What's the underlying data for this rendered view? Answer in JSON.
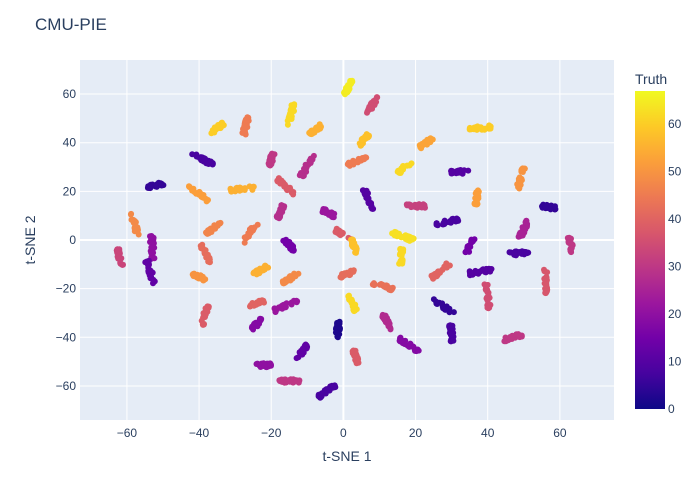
{
  "chart_data": {
    "type": "scatter",
    "title": "CMU-PIE",
    "xlabel": "t-SNE 1",
    "ylabel": "t-SNE 2",
    "xlim": [
      -73,
      75
    ],
    "ylim": [
      -74,
      74
    ],
    "x_ticks": [
      -60,
      -40,
      -20,
      0,
      20,
      40,
      60
    ],
    "y_ticks": [
      -60,
      -40,
      -20,
      0,
      20,
      40,
      60
    ],
    "tick_labels_x": [
      "−60",
      "−40",
      "−20",
      "0",
      "20",
      "40",
      "60"
    ],
    "tick_labels_y": [
      "−60",
      "−40",
      "−20",
      "0",
      "20",
      "40",
      "60"
    ],
    "grid": true,
    "plot_bgcolor": "#e5ecf6",
    "colorbar": {
      "title": "Truth",
      "range": [
        0,
        67
      ],
      "ticks": [
        0,
        10,
        20,
        30,
        40,
        50,
        60
      ],
      "tick_labels": [
        "0",
        "10",
        "20",
        "30",
        "40",
        "50",
        "60"
      ],
      "colorscale": [
        "#0d0887",
        "#46039f",
        "#7201a8",
        "#9c179e",
        "#bd3786",
        "#d8576b",
        "#ed7953",
        "#fb9f3a",
        "#fdca26",
        "#f0f921"
      ]
    },
    "clusters": [
      {
        "x": 1.5,
        "y": 63,
        "truth": 65
      },
      {
        "x": 8,
        "y": 55.5,
        "truth": 35
      },
      {
        "x": -14.5,
        "y": 51.5,
        "truth": 62
      },
      {
        "x": -35,
        "y": 46,
        "truth": 60
      },
      {
        "x": -27,
        "y": 47,
        "truth": 45
      },
      {
        "x": -8,
        "y": 45,
        "truth": 55
      },
      {
        "x": 38,
        "y": 46,
        "truth": 60
      },
      {
        "x": 5.5,
        "y": 41,
        "truth": 58
      },
      {
        "x": 23,
        "y": 40,
        "truth": 53
      },
      {
        "x": -39,
        "y": 33,
        "truth": 8
      },
      {
        "x": -20,
        "y": 33,
        "truth": 30
      },
      {
        "x": -10,
        "y": 30.5,
        "truth": 28
      },
      {
        "x": 4,
        "y": 32.5,
        "truth": 45
      },
      {
        "x": 17,
        "y": 30,
        "truth": 62
      },
      {
        "x": 32.5,
        "y": 28,
        "truth": 10
      },
      {
        "x": 49,
        "y": 25,
        "truth": 50
      },
      {
        "x": -52,
        "y": 22.5,
        "truth": 5
      },
      {
        "x": -16,
        "y": 22,
        "truth": 38
      },
      {
        "x": -28,
        "y": 21,
        "truth": 55
      },
      {
        "x": -40,
        "y": 19,
        "truth": 52
      },
      {
        "x": 7,
        "y": 16.5,
        "truth": 10
      },
      {
        "x": 20,
        "y": 14,
        "truth": 32
      },
      {
        "x": 37,
        "y": 17.5,
        "truth": 52
      },
      {
        "x": 57,
        "y": 13.5,
        "truth": 5
      },
      {
        "x": -17.5,
        "y": 11.5,
        "truth": 28
      },
      {
        "x": -4,
        "y": 11,
        "truth": 22
      },
      {
        "x": 29,
        "y": 7.5,
        "truth": 8
      },
      {
        "x": -58,
        "y": 7,
        "truth": 48
      },
      {
        "x": -36,
        "y": 5,
        "truth": 47
      },
      {
        "x": -26,
        "y": 3,
        "truth": 45
      },
      {
        "x": 0,
        "y": 2,
        "truth": 38
      },
      {
        "x": 16.5,
        "y": 1.5,
        "truth": 63
      },
      {
        "x": 50,
        "y": 4.5,
        "truth": 25
      },
      {
        "x": -53,
        "y": -3,
        "truth": 20
      },
      {
        "x": -15,
        "y": -2,
        "truth": 15
      },
      {
        "x": 3,
        "y": -2.5,
        "truth": 58
      },
      {
        "x": 35,
        "y": -2.5,
        "truth": 15
      },
      {
        "x": 63,
        "y": -2,
        "truth": 30
      },
      {
        "x": -62,
        "y": -7,
        "truth": 33
      },
      {
        "x": -38,
        "y": -6,
        "truth": 42
      },
      {
        "x": 16,
        "y": -6.5,
        "truth": 62
      },
      {
        "x": 48,
        "y": -5.5,
        "truth": 8
      },
      {
        "x": -53.5,
        "y": -13,
        "truth": 12
      },
      {
        "x": -23,
        "y": -12.5,
        "truth": 55
      },
      {
        "x": 1,
        "y": -14,
        "truth": 42
      },
      {
        "x": 27,
        "y": -12.5,
        "truth": 40
      },
      {
        "x": 38,
        "y": -13,
        "truth": 10
      },
      {
        "x": -40,
        "y": -15,
        "truth": 50
      },
      {
        "x": -14.5,
        "y": -15.5,
        "truth": 48
      },
      {
        "x": 56,
        "y": -17,
        "truth": 37
      },
      {
        "x": 11,
        "y": -19,
        "truth": 43
      },
      {
        "x": 40,
        "y": -23,
        "truth": 35
      },
      {
        "x": 2.5,
        "y": -26,
        "truth": 62
      },
      {
        "x": -24,
        "y": -26,
        "truth": 40
      },
      {
        "x": -16,
        "y": -27,
        "truth": 22
      },
      {
        "x": 27.5,
        "y": -27,
        "truth": 5
      },
      {
        "x": -38.5,
        "y": -31,
        "truth": 38
      },
      {
        "x": -24,
        "y": -34.5,
        "truth": 18
      },
      {
        "x": 12,
        "y": -33.5,
        "truth": 27
      },
      {
        "x": -1.5,
        "y": -36,
        "truth": 2
      },
      {
        "x": 30,
        "y": -38.5,
        "truth": 8
      },
      {
        "x": 47,
        "y": -40,
        "truth": 30
      },
      {
        "x": 18,
        "y": -43,
        "truth": 18
      },
      {
        "x": -11.5,
        "y": -46,
        "truth": 12
      },
      {
        "x": 3.5,
        "y": -48,
        "truth": 38
      },
      {
        "x": -22,
        "y": -51.5,
        "truth": 20
      },
      {
        "x": -15,
        "y": -58,
        "truth": 30
      },
      {
        "x": -4.5,
        "y": -62,
        "truth": 8
      }
    ]
  }
}
